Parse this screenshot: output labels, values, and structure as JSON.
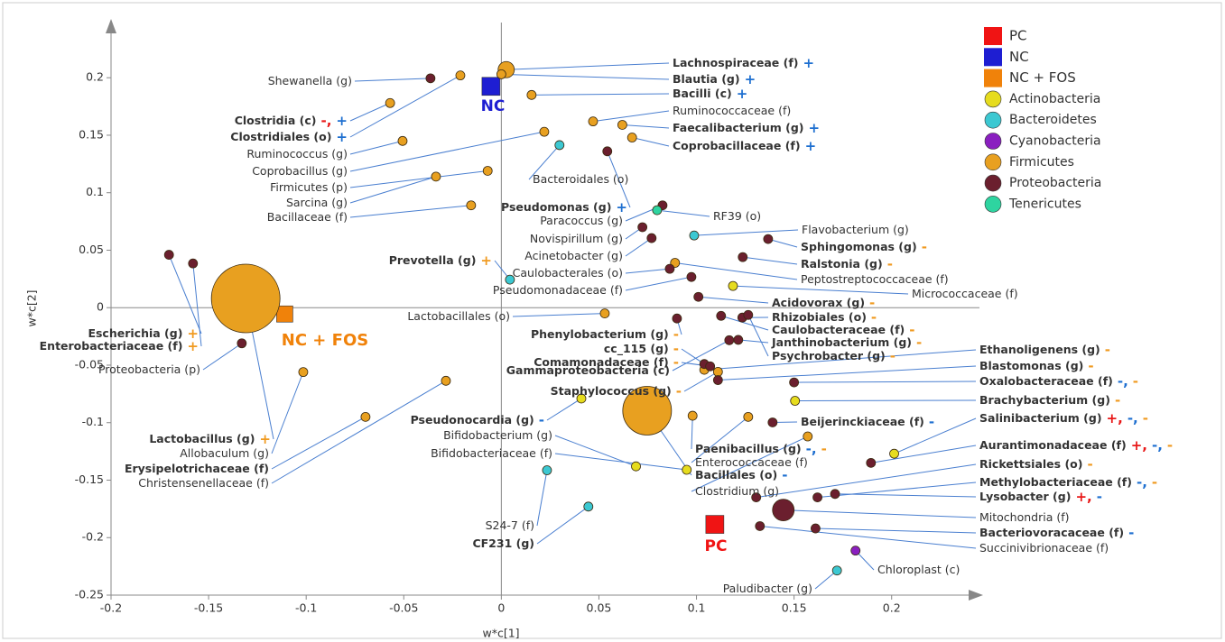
{
  "chart_data": {
    "type": "scatter",
    "x_label": "w*c[1]",
    "y_label": "w*c[2]",
    "xlim": [
      -0.2,
      0.245
    ],
    "ylim": [
      -0.25,
      0.248
    ],
    "xticks": [
      -0.2,
      -0.15,
      -0.1,
      -0.05,
      0,
      0.05,
      0.1,
      0.15,
      0.2
    ],
    "yticks": [
      -0.25,
      -0.2,
      -0.15,
      -0.1,
      -0.05,
      0,
      0.05,
      0.1,
      0.15,
      0.2
    ],
    "legend": "top-right",
    "series": [
      {
        "name": "PC",
        "color": "#f01414",
        "marker": "square",
        "x": [
          0.1094
        ],
        "y": [
          -0.1885
        ],
        "labels": [
          {
            "text": "PC"
          }
        ]
      },
      {
        "name": "NC",
        "color": "#1e1ed2",
        "marker": "square",
        "x": [
          -0.0053
        ],
        "y": [
          0.1925
        ],
        "labels": [
          {
            "text": "NC"
          }
        ]
      },
      {
        "name": "NC + FOS",
        "color": "#f0820a",
        "marker": "square",
        "x": [
          -0.111
        ],
        "y": [
          -0.0055
        ],
        "labels": [
          {
            "text": "NC + FOS"
          }
        ]
      },
      {
        "name": "Actinobacteria",
        "color": "#e6dc1e",
        "marker": "circle",
        "x": [
          0.1187,
          0.1505,
          0.2013,
          0.041,
          0.069,
          0.095
        ],
        "y": [
          0.0189,
          -0.081,
          -0.127,
          -0.079,
          -0.138,
          -0.141
        ],
        "sizes": [
          5,
          5,
          5,
          5,
          5,
          5
        ],
        "labels": [
          {
            "text": "Micrococcaceae (f)"
          },
          {
            "text": "Brachybacterium (g)",
            "bold": true,
            "signs": [
              {
                "text": "-",
                "color": "#f09a20"
              }
            ]
          },
          {
            "text": "Salinibacterium (g)",
            "bold": true,
            "signs": [
              {
                "text": "+,",
                "color": "#e81818"
              },
              {
                "text": "-,",
                "color": "#1e6fd0"
              },
              {
                "text": "-",
                "color": "#f09a20"
              }
            ]
          },
          {
            "text": "Pseudonocardia (g)",
            "bold": true,
            "signs": [
              {
                "text": "-",
                "color": "#1e6fd0"
              }
            ]
          },
          {
            "text": "Bifidobacterium (g)"
          },
          {
            "text": "Bifidobacteriaceae (f)"
          }
        ]
      },
      {
        "name": "Bacteroidetes",
        "color": "#3cc8d2",
        "marker": "circle",
        "x": [
          0.0298,
          0.0988,
          0.0044,
          0.0234,
          0.0446,
          0.172
        ],
        "y": [
          0.1414,
          0.0628,
          0.0244,
          -0.1414,
          -0.173,
          -0.2286
        ],
        "sizes": [
          5,
          5,
          5,
          5,
          5,
          5
        ],
        "labels": [
          {
            "text": "Bacteroidales (o)"
          },
          {
            "text": "Flavobacterium (g)"
          },
          {
            "text": "Prevotella (g)",
            "bold": true,
            "signs": [
              {
                "text": "+",
                "color": "#f09a20"
              }
            ]
          },
          {
            "text": "S24-7 (f)"
          },
          {
            "text": "CF231 (g)",
            "bold": true
          },
          {
            "text": "Paludibacter (g)"
          }
        ]
      },
      {
        "name": "Cyanobacteria",
        "color": "#8a1fc0",
        "marker": "circle",
        "x": [
          0.1815
        ],
        "y": [
          -0.2113
        ],
        "sizes": [
          5
        ],
        "labels": [
          {
            "text": "Chloroplast (c)"
          }
        ]
      },
      {
        "name": "Firmicutes",
        "color": "#e8a020",
        "marker": "circle",
        "x": [
          0.0025,
          0.0,
          0.0155,
          0.047,
          0.062,
          0.067,
          -0.057,
          -0.021,
          -0.0506,
          0.022,
          -0.007,
          -0.0335,
          -0.0155,
          0.053,
          -0.131,
          -0.1015,
          -0.0696,
          -0.0284,
          0.111,
          0.104,
          0.0747,
          0.098,
          0.1265,
          0.157,
          0.089
        ],
        "y": [
          0.207,
          0.203,
          0.185,
          0.162,
          0.159,
          0.148,
          0.178,
          0.202,
          0.145,
          0.153,
          0.119,
          0.114,
          0.089,
          -0.005,
          0.008,
          -0.056,
          -0.095,
          -0.0636,
          -0.0558,
          -0.054,
          -0.0896,
          -0.094,
          -0.095,
          -0.112,
          0.039
        ],
        "sizes": [
          9,
          5,
          5,
          5,
          5,
          5,
          5,
          5,
          5,
          5,
          5,
          5,
          5,
          5,
          38,
          5,
          5,
          5,
          5,
          5,
          27,
          5,
          5,
          5,
          5
        ],
        "labels": [
          {
            "text": "Lachnospiraceae (f)",
            "bold": true,
            "signs": [
              {
                "text": "+",
                "color": "#1e6fd0"
              }
            ]
          },
          {
            "text": "Blautia (g)",
            "bold": true,
            "signs": [
              {
                "text": "+",
                "color": "#1e6fd0"
              }
            ]
          },
          {
            "text": "Bacilli (c)",
            "bold": true,
            "signs": [
              {
                "text": "+",
                "color": "#1e6fd0"
              }
            ]
          },
          {
            "text": "Ruminococcaceae (f)"
          },
          {
            "text": "Faecalibacterium (g)",
            "bold": true,
            "signs": [
              {
                "text": "+",
                "color": "#1e6fd0"
              }
            ]
          },
          {
            "text": "Coprobacillaceae (f)",
            "bold": true,
            "signs": [
              {
                "text": "+",
                "color": "#1e6fd0"
              }
            ]
          },
          {
            "text": "Clostridia (c)",
            "bold": true,
            "signs": [
              {
                "text": "-,",
                "color": "#e81818"
              },
              {
                "text": "+",
                "color": "#1e6fd0"
              }
            ]
          },
          {
            "text": "Clostridiales (o)",
            "bold": true,
            "signs": [
              {
                "text": "+",
                "color": "#1e6fd0"
              }
            ]
          },
          {
            "text": "Ruminococcus (g)"
          },
          {
            "text": "Coprobacillus (g)"
          },
          {
            "text": "Firmicutes (p)"
          },
          {
            "text": "Sarcina (g)"
          },
          {
            "text": "Bacillaceae (f)"
          },
          {
            "text": "Lactobacillales (o)"
          },
          {
            "text": "Lactobacillus (g)",
            "bold": true,
            "signs": [
              {
                "text": "+",
                "color": "#f09a20"
              }
            ]
          },
          {
            "text": "Allobaculum (g)"
          },
          {
            "text": "Erysipelotrichaceae (f)",
            "bold": true
          },
          {
            "text": "Christensenellaceae (f)"
          },
          {
            "text": "Staphylococcus (g)",
            "bold": true,
            "signs": [
              {
                "text": "-",
                "color": "#f09a20"
              }
            ]
          },
          {
            "text": "Ethanoligenens (g)",
            "bold": true,
            "signs": [
              {
                "text": "-",
                "color": "#f09a20"
              }
            ]
          },
          {
            "text": "Bacillales (o)",
            "bold": true,
            "signs": [
              {
                "text": "-",
                "color": "#1e6fd0"
              }
            ]
          },
          {
            "text": "Paenibacillus (g)",
            "bold": true,
            "signs": [
              {
                "text": "-,",
                "color": "#1e6fd0"
              },
              {
                "text": "-",
                "color": "#f09a20"
              }
            ]
          },
          {
            "text": "Enterococcaceae (f)"
          },
          {
            "text": "Clostridium (g)"
          },
          {
            "text": "Peptostreptococcaceae (f)"
          }
        ]
      },
      {
        "name": "Proteobacteria",
        "color": "#6b1f2e",
        "marker": "circle",
        "x": [
          -0.0363,
          -0.1703,
          -0.158,
          -0.133,
          0.0543,
          0.0826,
          0.0723,
          0.077,
          0.0863,
          0.0974,
          0.1367,
          0.1237,
          0.101,
          0.1235,
          0.1126,
          0.1214,
          0.1265,
          0.09,
          0.104,
          0.107,
          0.1168,
          0.111,
          0.15,
          0.139,
          0.1894,
          0.1306,
          0.162,
          0.171,
          0.1445,
          0.161,
          0.1325
        ],
        "y": [
          0.1995,
          0.046,
          0.0385,
          -0.031,
          0.136,
          0.089,
          0.07,
          0.0605,
          0.0338,
          0.0267,
          0.0597,
          0.044,
          0.0094,
          -0.0086,
          -0.0071,
          -0.028,
          -0.0063,
          -0.0094,
          -0.049,
          -0.051,
          -0.0283,
          -0.063,
          -0.065,
          -0.0998,
          -0.135,
          -0.165,
          -0.165,
          -0.162,
          -0.176,
          -0.192,
          -0.19
        ],
        "sizes": [
          5,
          5,
          5,
          5,
          5,
          5,
          5,
          5,
          5,
          5,
          5,
          5,
          5,
          5,
          5,
          5,
          5,
          5,
          5,
          5,
          5,
          5,
          5,
          5,
          5,
          5,
          5,
          5,
          12,
          5,
          5
        ],
        "labels": [
          {
            "text": "Shewanella (g)"
          },
          {
            "text": "Escherichia (g)",
            "bold": true,
            "signs": [
              {
                "text": "+",
                "color": "#f09a20"
              }
            ]
          },
          {
            "text": "Enterobacteriaceae (f)",
            "bold": true,
            "signs": [
              {
                "text": "+",
                "color": "#f09a20"
              }
            ]
          },
          {
            "text": "Proteobacteria (p)"
          },
          {
            "text": "Pseudomonas (g)",
            "bold": true,
            "signs": [
              {
                "text": "+",
                "color": "#1e6fd0"
              }
            ]
          },
          {
            "text": "Paracoccus (g)"
          },
          {
            "text": "Novispirillum (g)"
          },
          {
            "text": "Acinetobacter (g)"
          },
          {
            "text": "Caulobacterales (o)"
          },
          {
            "text": "Pseudomonadaceae (f)"
          },
          {
            "text": "Sphingomonas (g)",
            "bold": true,
            "signs": [
              {
                "text": "-",
                "color": "#f09a20"
              }
            ]
          },
          {
            "text": "Ralstonia (g)",
            "bold": true,
            "signs": [
              {
                "text": "-",
                "color": "#f09a20"
              }
            ]
          },
          {
            "text": "Acidovorax (g)",
            "bold": true,
            "signs": [
              {
                "text": "-",
                "color": "#f09a20"
              }
            ]
          },
          {
            "text": "Rhizobiales (o)",
            "bold": true,
            "signs": [
              {
                "text": "-",
                "color": "#f09a20"
              }
            ]
          },
          {
            "text": "Caulobacteraceae (f)",
            "bold": true,
            "signs": [
              {
                "text": "-",
                "color": "#f09a20"
              }
            ]
          },
          {
            "text": "Janthinobacterium (g)",
            "bold": true,
            "signs": [
              {
                "text": "-",
                "color": "#f09a20"
              }
            ]
          },
          {
            "text": "Psychrobacter (g)",
            "bold": true,
            "signs": [
              {
                "text": "-",
                "color": "#f09a20"
              }
            ]
          },
          {
            "text": "Phenylobacterium (g)",
            "bold": true,
            "signs": [
              {
                "text": "-",
                "color": "#f09a20"
              }
            ]
          },
          {
            "text": "cc_115 (g)",
            "bold": true,
            "signs": [
              {
                "text": "-",
                "color": "#f09a20"
              }
            ]
          },
          {
            "text": "Comamonadaceae (f)",
            "bold": true,
            "signs": [
              {
                "text": "-",
                "color": "#f09a20"
              }
            ]
          },
          {
            "text": "Gammaproteobacteria (c)",
            "bold": true
          },
          {
            "text": "Blastomonas (g)",
            "bold": true,
            "signs": [
              {
                "text": "-",
                "color": "#f09a20"
              }
            ]
          },
          {
            "text": "Oxalobacteraceae (f)",
            "bold": true,
            "signs": [
              {
                "text": "-,",
                "color": "#1e6fd0"
              },
              {
                "text": "-",
                "color": "#f09a20"
              }
            ]
          },
          {
            "text": "Beijerinckiaceae (f)",
            "bold": true,
            "signs": [
              {
                "text": "-",
                "color": "#1e6fd0"
              }
            ]
          },
          {
            "text": "Aurantimonadaceae (f)",
            "bold": true,
            "signs": [
              {
                "text": "+,",
                "color": "#e81818"
              },
              {
                "text": "-,",
                "color": "#1e6fd0"
              },
              {
                "text": "-",
                "color": "#f09a20"
              }
            ]
          },
          {
            "text": "Rickettsiales (o)",
            "bold": true,
            "signs": [
              {
                "text": "-",
                "color": "#f09a20"
              }
            ]
          },
          {
            "text": "Methylobacteriaceae (f)",
            "bold": true,
            "signs": [
              {
                "text": "-,",
                "color": "#1e6fd0"
              },
              {
                "text": "-",
                "color": "#f09a20"
              }
            ]
          },
          {
            "text": "Lysobacter (g)",
            "bold": true,
            "signs": [
              {
                "text": "+,",
                "color": "#e81818"
              },
              {
                "text": "-",
                "color": "#1e6fd0"
              }
            ]
          },
          {
            "text": "Mitochondria (f)"
          },
          {
            "text": "Bacteriovoracaceae (f)",
            "bold": true,
            "signs": [
              {
                "text": "-",
                "color": "#1e6fd0"
              }
            ]
          },
          {
            "text": "Succinivibrionaceae (f)"
          }
        ]
      },
      {
        "name": "Tenericutes",
        "color": "#2ed4a0",
        "marker": "circle",
        "x": [
          0.0798
        ],
        "y": [
          0.0848
        ],
        "sizes": [
          5
        ],
        "labels": [
          {
            "text": "RF39 (o)"
          }
        ]
      }
    ]
  }
}
